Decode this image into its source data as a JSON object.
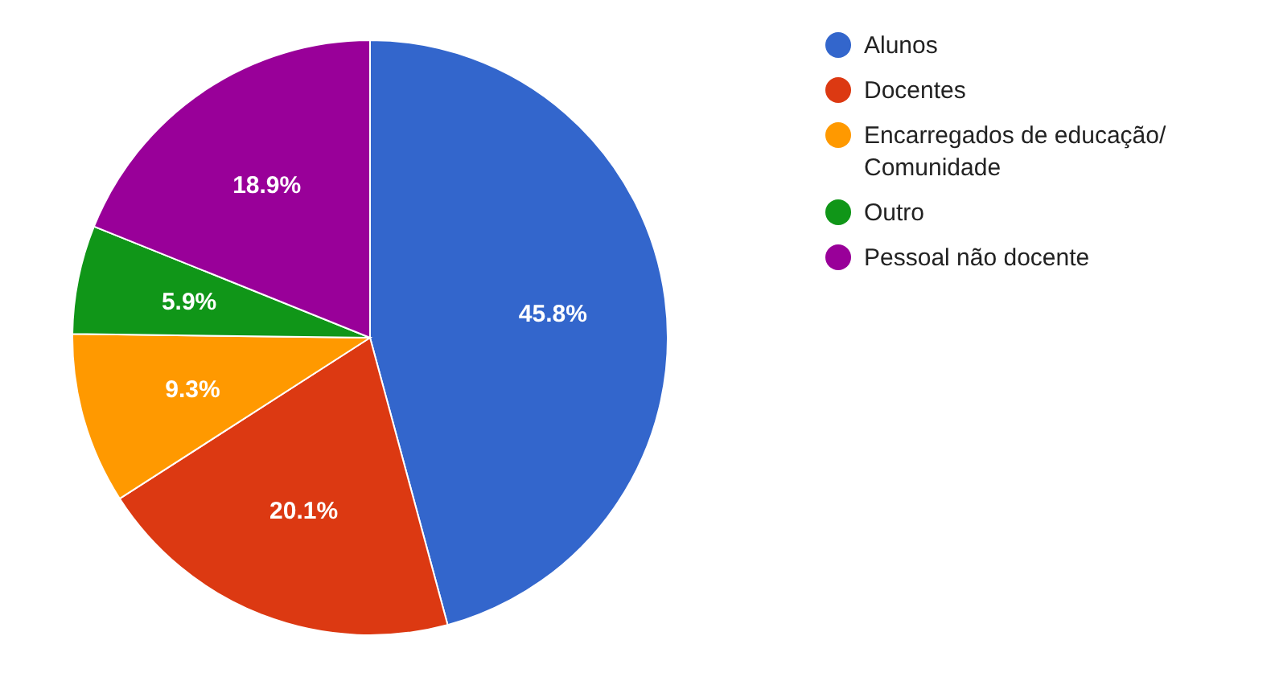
{
  "chart_data": {
    "type": "pie",
    "categories": [
      "Alunos",
      "Docentes",
      "Encarregados de educação/ Comunidade",
      "Outro",
      "Pessoal não docente"
    ],
    "values": [
      45.8,
      20.1,
      9.3,
      5.9,
      18.9
    ],
    "colors": [
      "#3366cc",
      "#dc3912",
      "#ff9900",
      "#109618",
      "#990099"
    ],
    "value_labels": [
      "45.8%",
      "20.1%",
      "9.3%",
      "5.9%",
      "18.9%"
    ],
    "legend": "right"
  }
}
